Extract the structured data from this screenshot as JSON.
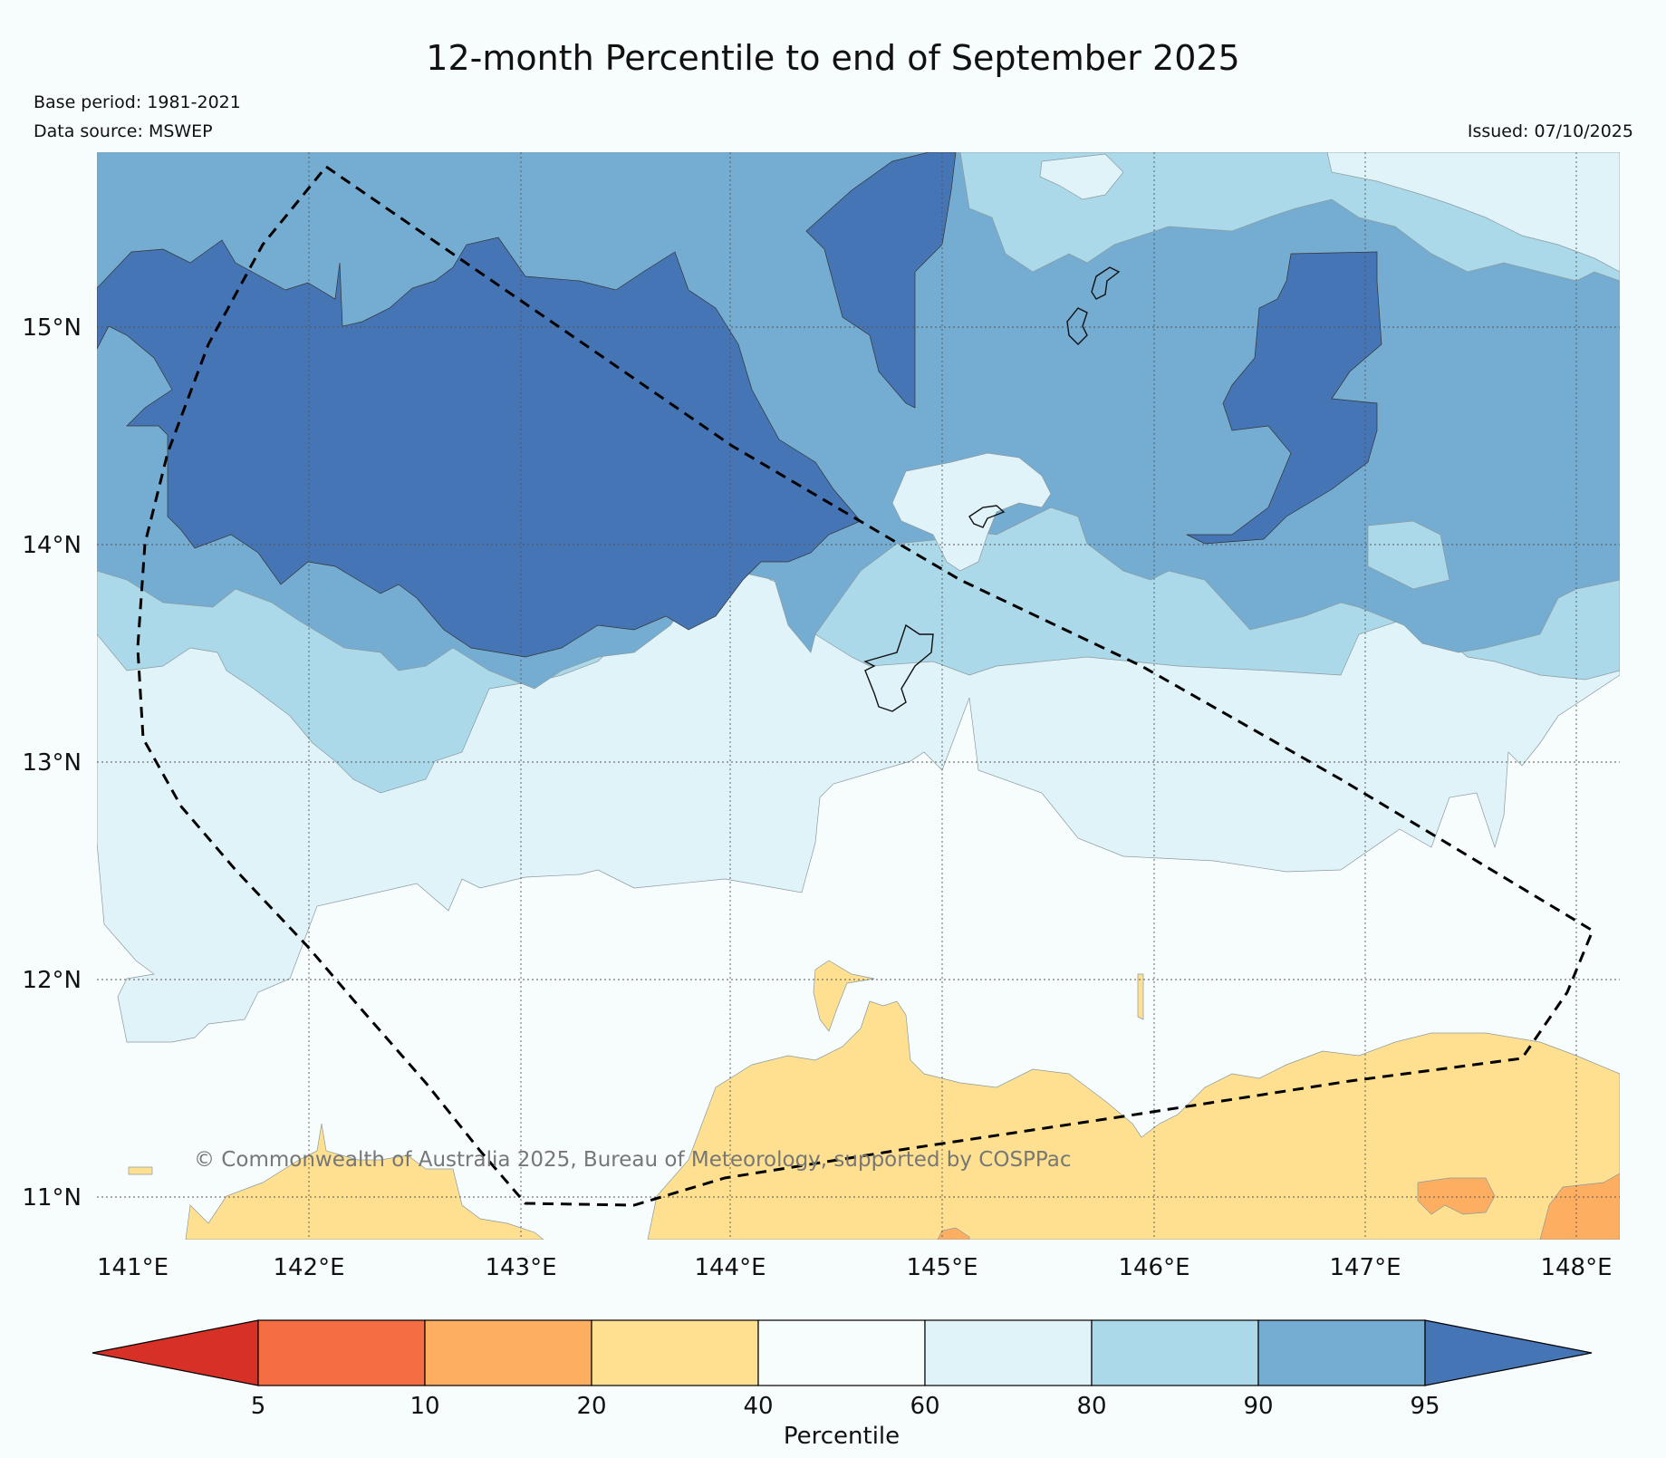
{
  "title": "12-month Percentile to end of September 2025",
  "meta": {
    "base_period": "Base period: 1981-2021",
    "data_source": "Data source: MSWEP",
    "issued": "Issued: 07/10/2025"
  },
  "copyright": "© Commonwealth of Australia 2025, Bureau of Meteorology, supported by COSPPac",
  "axes": {
    "lon_labels": [
      "141°E",
      "142°E",
      "143°E",
      "144°E",
      "145°E",
      "146°E",
      "147°E",
      "148°E"
    ],
    "lat_labels": [
      "15°N",
      "14°N",
      "13°N",
      "12°N",
      "11°N"
    ],
    "lon_range": [
      141.0,
      148.2
    ],
    "lat_range": [
      10.8,
      15.8
    ]
  },
  "colorbar": {
    "label": "Percentile",
    "ticks": [
      "5",
      "10",
      "20",
      "40",
      "60",
      "80",
      "90",
      "95"
    ],
    "colors": {
      "below_5": "#d73027",
      "p5_10": "#f46d43",
      "p10_20": "#fdae61",
      "p20_40": "#fee090",
      "p40_60": "#f7fcfd",
      "p60_80": "#e0f3f8",
      "p80_90": "#abd9e9",
      "p90_95": "#74add1",
      "above_95": "#4575b4"
    }
  }
}
